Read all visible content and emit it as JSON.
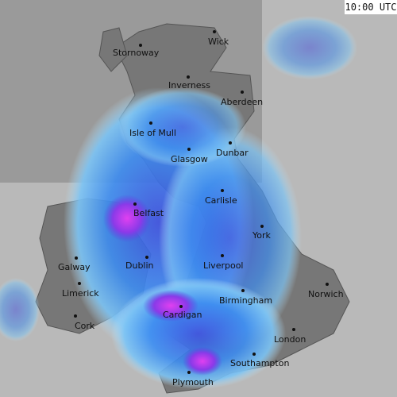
{
  "timestamp": "10:00 UTC",
  "places": [
    "Stornoway",
    "Wick",
    "Inverness",
    "Aberdeen",
    "Isle of Mull",
    "Dunbar",
    "Glasgow",
    "Carlisle",
    "Belfast",
    "York",
    "Galway",
    "Dublin",
    "Liverpool",
    "Limerick",
    "Norwich",
    "Birmingham",
    "Cardigan",
    "Cork",
    "London",
    "Southampton",
    "Plymouth"
  ]
}
